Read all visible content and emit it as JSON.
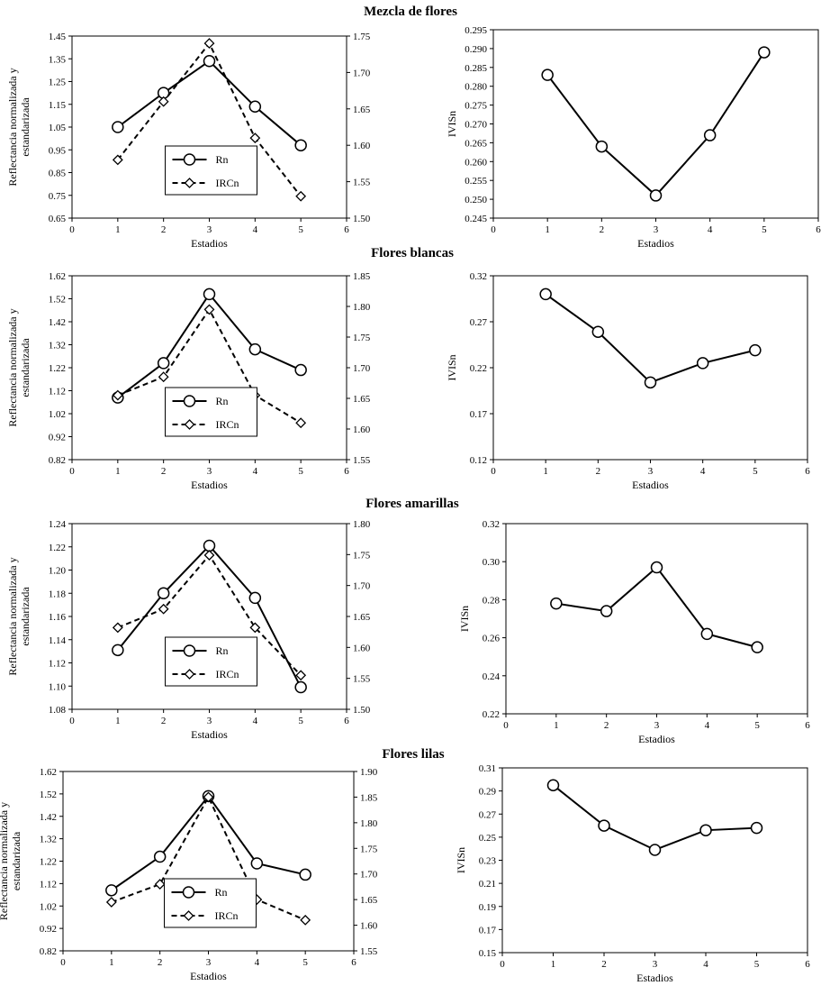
{
  "chart_data": [
    {
      "type": "line",
      "group_title": "Mezcla de flores",
      "panel": "left",
      "xlabel": "Estadios",
      "ylabel_lines": [
        "Reflectancia normalizada y",
        "estandarizada"
      ],
      "xlim": [
        0,
        6
      ],
      "xticks": [
        0,
        1,
        2,
        3,
        4,
        5,
        6
      ],
      "ylim": [
        0.65,
        1.45
      ],
      "yticks": [
        "0.65",
        "0.75",
        "0.85",
        "0.95",
        "1.05",
        "1.15",
        "1.25",
        "1.35",
        "1.45"
      ],
      "y2lim": [
        1.5,
        1.75
      ],
      "y2ticks": [
        "1.50",
        "1.55",
        "1.60",
        "1.65",
        "1.70",
        "1.75"
      ],
      "x": [
        1,
        2,
        3,
        4,
        5
      ],
      "series": [
        {
          "name": "Rn",
          "axis": "left",
          "style": "solid",
          "marker": "circle",
          "values": [
            1.05,
            1.2,
            1.34,
            1.14,
            0.97
          ]
        },
        {
          "name": "IRCn",
          "axis": "right",
          "style": "dashed",
          "marker": "diamond",
          "values": [
            1.58,
            1.66,
            1.74,
            1.61,
            1.53
          ]
        }
      ],
      "legend": "lower-center"
    },
    {
      "type": "line",
      "group_title": "Mezcla de flores",
      "panel": "right",
      "xlabel": "Estadios",
      "ylabel": "IVISn",
      "xlim": [
        0,
        6
      ],
      "xticks": [
        0,
        1,
        2,
        3,
        4,
        5,
        6
      ],
      "ylim": [
        0.245,
        0.295
      ],
      "yticks": [
        "0.245",
        "0.250",
        "0.255",
        "0.260",
        "0.265",
        "0.270",
        "0.275",
        "0.280",
        "0.285",
        "0.290",
        "0.295"
      ],
      "x": [
        1,
        2,
        3,
        4,
        5
      ],
      "series": [
        {
          "name": "IVISn",
          "style": "solid",
          "marker": "circle",
          "values": [
            0.283,
            0.264,
            0.251,
            0.267,
            0.289
          ]
        }
      ]
    },
    {
      "type": "line",
      "group_title": "Flores blancas",
      "panel": "left",
      "xlabel": "Estadios",
      "ylabel_lines": [
        "Reflectancia normalizada y",
        "estandarizada"
      ],
      "xlim": [
        0,
        6
      ],
      "xticks": [
        0,
        1,
        2,
        3,
        4,
        5,
        6
      ],
      "ylim": [
        0.82,
        1.62
      ],
      "yticks": [
        "0.82",
        "0.92",
        "1.02",
        "1.12",
        "1.22",
        "1.32",
        "1.42",
        "1.52",
        "1.62"
      ],
      "y2lim": [
        1.55,
        1.85
      ],
      "y2ticks": [
        "1.55",
        "1.60",
        "1.65",
        "1.70",
        "1.75",
        "1.80",
        "1.85"
      ],
      "x": [
        1,
        2,
        3,
        4,
        5
      ],
      "series": [
        {
          "name": "Rn",
          "axis": "left",
          "style": "solid",
          "marker": "circle",
          "values": [
            1.09,
            1.24,
            1.54,
            1.3,
            1.21
          ]
        },
        {
          "name": "IRCn",
          "axis": "right",
          "style": "dashed",
          "marker": "diamond",
          "values": [
            1.655,
            1.685,
            1.795,
            1.655,
            1.61
          ]
        }
      ],
      "legend": "lower-center"
    },
    {
      "type": "line",
      "group_title": "Flores blancas",
      "panel": "right",
      "xlabel": "Estadios",
      "ylabel": "IVISn",
      "xlim": [
        0,
        6
      ],
      "xticks": [
        0,
        1,
        2,
        3,
        4,
        5,
        6
      ],
      "ylim": [
        0.12,
        0.32
      ],
      "yticks": [
        "0.12",
        "0.17",
        "0.22",
        "0.27",
        "0.32"
      ],
      "x": [
        1,
        2,
        3,
        4,
        5
      ],
      "series": [
        {
          "name": "IVISn",
          "style": "solid",
          "marker": "circle",
          "values": [
            0.3,
            0.259,
            0.204,
            0.225,
            0.239
          ]
        }
      ]
    },
    {
      "type": "line",
      "group_title": "Flores amarillas",
      "panel": "left",
      "xlabel": "Estadios",
      "ylabel_lines": [
        "Reflectancia normalizada y",
        "estandarizada"
      ],
      "xlim": [
        0,
        6
      ],
      "xticks": [
        0,
        1,
        2,
        3,
        4,
        5,
        6
      ],
      "ylim": [
        1.08,
        1.24
      ],
      "yticks": [
        "1.08",
        "1.10",
        "1.12",
        "1.14",
        "1.16",
        "1.18",
        "1.20",
        "1.22",
        "1.24"
      ],
      "y2lim": [
        1.5,
        1.8
      ],
      "y2ticks": [
        "1.50",
        "1.55",
        "1.60",
        "1.65",
        "1.70",
        "1.75",
        "1.80"
      ],
      "x": [
        1,
        2,
        3,
        4,
        5
      ],
      "series": [
        {
          "name": "Rn",
          "axis": "left",
          "style": "solid",
          "marker": "circle",
          "values": [
            1.131,
            1.18,
            1.221,
            1.176,
            1.099
          ]
        },
        {
          "name": "IRCn",
          "axis": "right",
          "style": "dashed",
          "marker": "diamond",
          "values": [
            1.632,
            1.662,
            1.749,
            1.632,
            1.555
          ]
        }
      ],
      "legend": "lower-center"
    },
    {
      "type": "line",
      "group_title": "Flores amarillas",
      "panel": "right",
      "xlabel": "Estadios",
      "ylabel": "IVISn",
      "xlim": [
        0,
        6
      ],
      "xticks": [
        0,
        1,
        2,
        3,
        4,
        5,
        6
      ],
      "ylim": [
        0.22,
        0.32
      ],
      "yticks": [
        "0.22",
        "0.24",
        "0.26",
        "0.28",
        "0.30",
        "0.32"
      ],
      "x": [
        1,
        2,
        3,
        4,
        5
      ],
      "series": [
        {
          "name": "IVISn",
          "style": "solid",
          "marker": "circle",
          "values": [
            0.278,
            0.274,
            0.297,
            0.262,
            0.255
          ]
        }
      ]
    },
    {
      "type": "line",
      "group_title": "Flores lilas",
      "panel": "left",
      "xlabel": "Estadios",
      "ylabel_lines": [
        "Reflectancia normalizada y",
        "estandarizada"
      ],
      "xlim": [
        0,
        6
      ],
      "xticks": [
        0,
        1,
        2,
        3,
        4,
        5,
        6
      ],
      "ylim": [
        0.82,
        1.62
      ],
      "yticks": [
        "0.82",
        "0.92",
        "1.02",
        "1.12",
        "1.22",
        "1.32",
        "1.42",
        "1.52",
        "1.62"
      ],
      "y2lim": [
        1.55,
        1.9
      ],
      "y2ticks": [
        "1.55",
        "1.60",
        "1.65",
        "1.70",
        "1.75",
        "1.80",
        "1.85",
        "1.90"
      ],
      "x": [
        1,
        2,
        3,
        4,
        5
      ],
      "series": [
        {
          "name": "Rn",
          "axis": "left",
          "style": "solid",
          "marker": "circle",
          "values": [
            1.09,
            1.24,
            1.51,
            1.21,
            1.16
          ]
        },
        {
          "name": "IRCn",
          "axis": "right",
          "style": "dashed",
          "marker": "diamond",
          "values": [
            1.645,
            1.68,
            1.85,
            1.65,
            1.61
          ]
        }
      ],
      "legend": "lower-center"
    },
    {
      "type": "line",
      "group_title": "Flores lilas",
      "panel": "right",
      "xlabel": "Estadios",
      "ylabel": "IVISn",
      "xlim": [
        0,
        6
      ],
      "xticks": [
        0,
        1,
        2,
        3,
        4,
        5,
        6
      ],
      "ylim": [
        0.15,
        0.31
      ],
      "yticks": [
        "0.15",
        "0.17",
        "0.19",
        "0.21",
        "0.23",
        "0.25",
        "0.27",
        "0.29",
        "0.31"
      ],
      "x": [
        1,
        2,
        3,
        4,
        5
      ],
      "series": [
        {
          "name": "IVISn",
          "style": "solid",
          "marker": "circle",
          "values": [
            0.295,
            0.26,
            0.239,
            0.256,
            0.258
          ]
        }
      ]
    }
  ]
}
